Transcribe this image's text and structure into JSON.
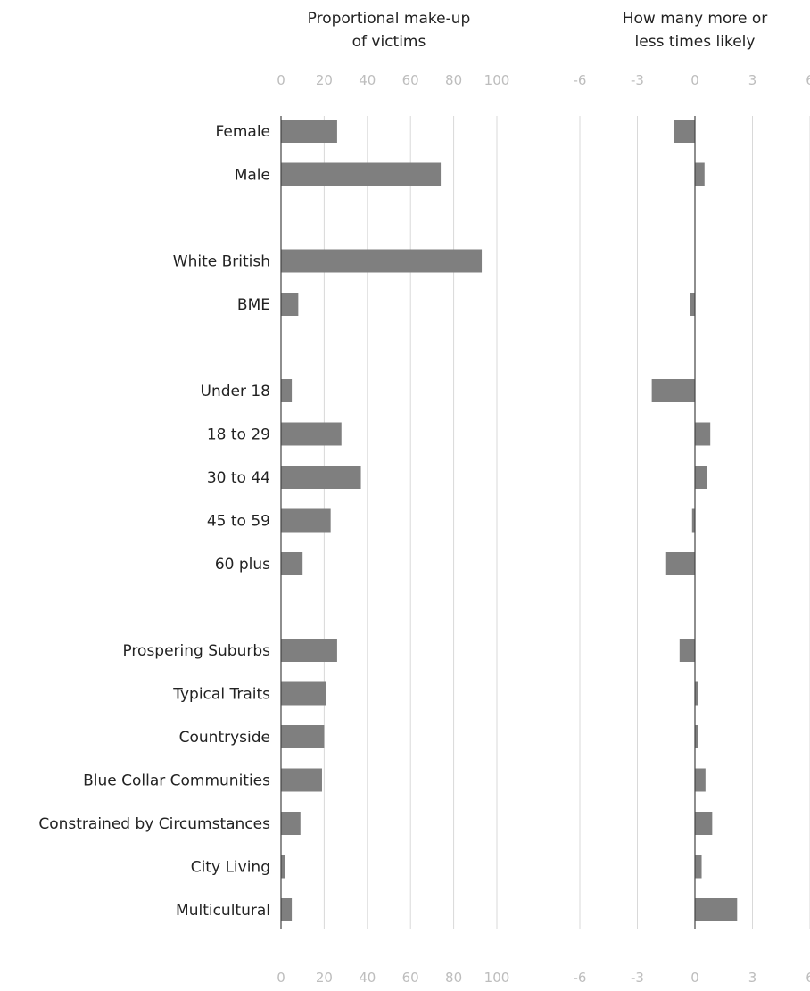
{
  "colors": {
    "bar": "#7f7f7f",
    "grid": "#d9d9d9",
    "axis": "#444444",
    "tick_label": "#bdbdbd",
    "text": "#222222"
  },
  "chart_data": [
    {
      "type": "bar",
      "orientation": "horizontal",
      "title_lines": [
        "Proportional make-up",
        "of victims"
      ],
      "xlim": [
        0,
        100
      ],
      "ticks": [
        "0",
        "20",
        "40",
        "60",
        "80",
        "100"
      ],
      "tick_axes": [
        "top",
        "bottom"
      ],
      "grid": true,
      "categories": [
        "Female",
        "Male",
        "",
        "White  British",
        "BME",
        "",
        "Under 18",
        "18 to 29",
        "30 to 44",
        "45 to 59",
        "60 plus",
        "",
        "Prospering Suburbs",
        "Typical Traits",
        "Countryside",
        "Blue Collar Communities",
        "Constrained by Circumstances",
        "City Living",
        "Multicultural"
      ],
      "values": [
        26,
        74,
        null,
        93,
        8,
        null,
        5,
        28,
        37,
        23,
        10,
        null,
        26,
        21,
        20,
        19,
        9,
        2,
        5
      ]
    },
    {
      "type": "bar",
      "orientation": "horizontal",
      "title_lines": [
        "How many more or",
        "less times likely"
      ],
      "xlim": [
        -6,
        6
      ],
      "ticks": [
        "-6",
        "-3",
        "0",
        "3",
        "6"
      ],
      "tick_axes": [
        "top",
        "bottom"
      ],
      "grid": true,
      "categories": [
        "Female",
        "Male",
        "",
        "White  British",
        "BME",
        "",
        "Under 18",
        "18 to 29",
        "30 to 44",
        "45 to 59",
        "60 plus",
        "",
        "Prospering Suburbs",
        "Typical Traits",
        "Countryside",
        "Blue Collar Communities",
        "Constrained by Circumstances",
        "City Living",
        "Multicultural"
      ],
      "values": [
        -1.1,
        0.5,
        null,
        0,
        -0.25,
        null,
        -2.25,
        0.8,
        0.65,
        -0.15,
        -1.5,
        null,
        -0.8,
        0.15,
        0.15,
        0.55,
        0.9,
        0.35,
        2.2
      ]
    }
  ]
}
